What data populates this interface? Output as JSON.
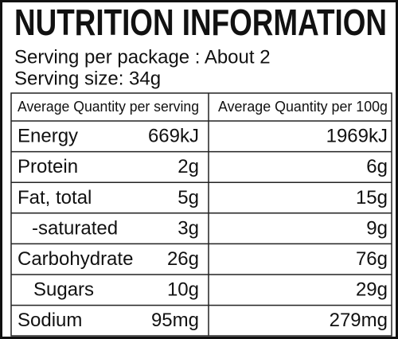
{
  "header": {
    "title": "NUTRITION INFORMATION",
    "servings_per_package": "Serving per package : About 2",
    "serving_size": "Serving size: 34g"
  },
  "table": {
    "columns": [
      "Average Quantity per serving",
      "Average Quantity per 100g"
    ],
    "rows": [
      [
        "Energy",
        "669kJ",
        "1969kJ"
      ],
      [
        "Protein",
        "2g",
        "6g"
      ],
      [
        "Fat, total",
        "5g",
        "15g"
      ],
      [
        "-saturated",
        "3g",
        "9g"
      ],
      [
        "Carbohydrate",
        "26g",
        "76g"
      ],
      [
        "Sugars",
        "10g",
        "29g"
      ],
      [
        "Sodium",
        "95mg",
        "279mg"
      ]
    ]
  }
}
